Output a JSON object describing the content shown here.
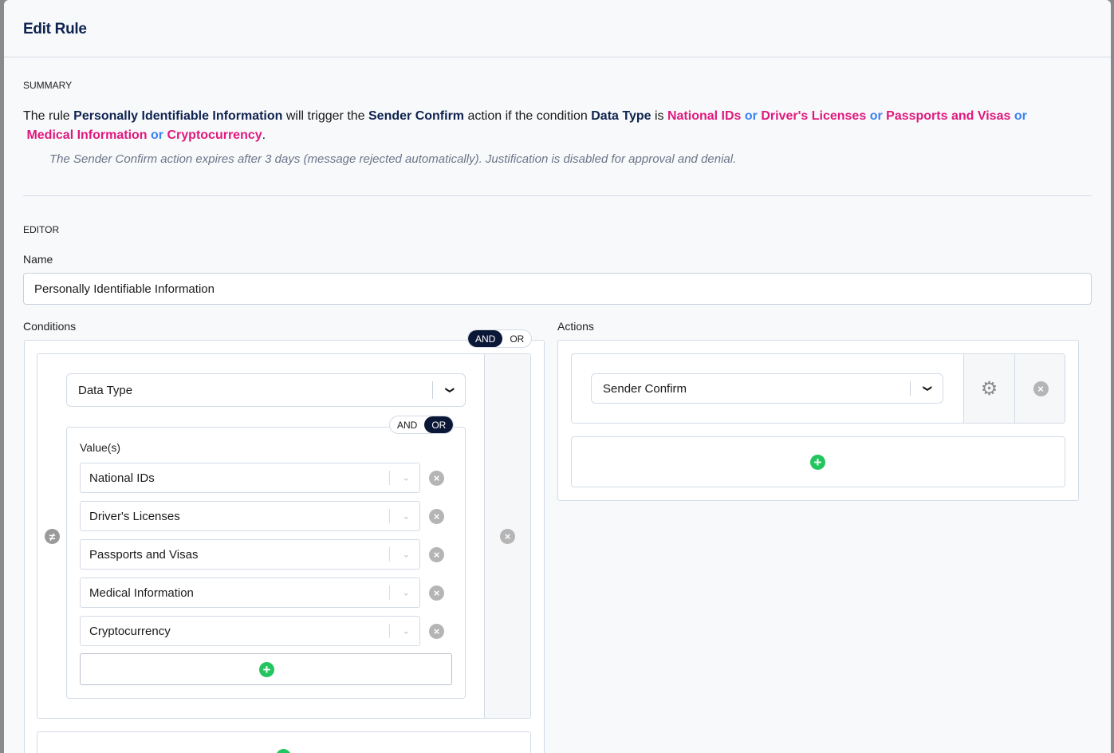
{
  "header": {
    "title": "Edit Rule"
  },
  "summary": {
    "section_label": "SUMMARY",
    "t1": "The rule ",
    "rule_name": "Personally Identifiable Information",
    "t2": " will trigger the ",
    "action": "Sender Confirm",
    "t3": " action if the condition ",
    "condition": "Data Type",
    "t4": " is ",
    "values": [
      "National IDs",
      "Driver's Licenses",
      "Passports and Visas",
      "Medical Information",
      "Cryptocurrency"
    ],
    "or": "or",
    "end": ".",
    "note": "The Sender Confirm action expires after 3 days (message rejected automatically). Justification is disabled for approval and denial."
  },
  "editor": {
    "section_label": "EDITOR",
    "name_label": "Name",
    "name_value": "Personally Identifiable Information",
    "conditions_label": "Conditions",
    "conditions_toggle": {
      "and": "AND",
      "or": "OR",
      "selected": "AND"
    },
    "condition": {
      "field": "Data Type",
      "values_label": "Value(s)",
      "values_toggle": {
        "and": "AND",
        "or": "OR",
        "selected": "OR"
      },
      "values": [
        "National IDs",
        "Driver's Licenses",
        "Passports and Visas",
        "Medical Information",
        "Cryptocurrency"
      ],
      "operator_icon": "not-equal-icon"
    },
    "actions_label": "Actions",
    "action": {
      "value": "Sender Confirm"
    }
  },
  "colors": {
    "title": "#0f2350",
    "value": "#e0197d",
    "or": "#3b82f6",
    "add": "#22c55e",
    "toggle_active": "#0b1736"
  }
}
